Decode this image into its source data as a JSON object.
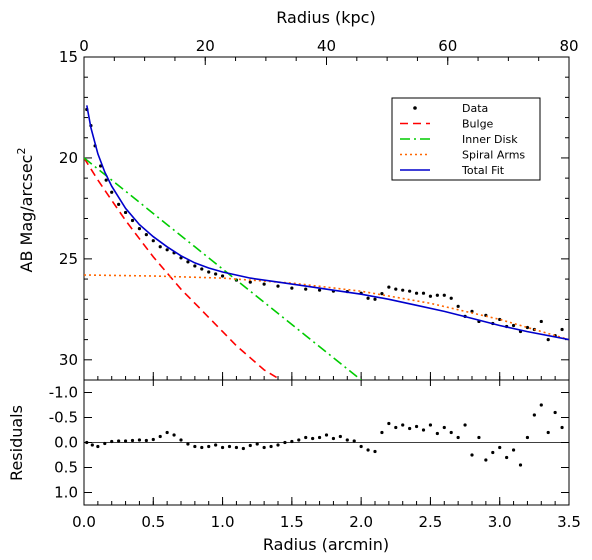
{
  "chart_data": {
    "type": "scatter",
    "top_axis": {
      "label": "Radius (kpc)",
      "ticks": [
        "0",
        "20",
        "40",
        "60",
        "80"
      ],
      "tick_values": [
        0,
        20,
        40,
        60,
        80
      ],
      "range": [
        0,
        80
      ]
    },
    "bottom_axis": {
      "label": "Radius (arcmin)",
      "ticks": [
        "0.0",
        "0.5",
        "1.0",
        "1.5",
        "2.0",
        "2.5",
        "3.0",
        "3.5"
      ],
      "tick_values": [
        0.0,
        0.5,
        1.0,
        1.5,
        2.0,
        2.5,
        3.0,
        3.5
      ],
      "range": [
        0,
        3.5
      ]
    },
    "main_panel": {
      "ylabel_main": "AB Mag/arcsec",
      "ylabel_sup": "2",
      "ylim": [
        15,
        31
      ],
      "y_inverted": true,
      "yticks": [
        "15",
        "20",
        "25",
        "30"
      ],
      "ytick_values": [
        15,
        20,
        25,
        30
      ],
      "legend_position": "top-right",
      "legend": [
        {
          "label": "Data",
          "style": "points",
          "color": "#000000"
        },
        {
          "label": "Bulge",
          "style": "dashed",
          "color": "#ff0000"
        },
        {
          "label": "Inner Disk",
          "style": "dash-dot",
          "color": "#00cc00"
        },
        {
          "label": "Spiral Arms",
          "style": "dotted",
          "color": "#ff6600"
        },
        {
          "label": "Total Fit",
          "style": "solid",
          "color": "#0000cc"
        }
      ],
      "series": [
        {
          "name": "Data",
          "x": [
            0.02,
            0.05,
            0.08,
            0.12,
            0.16,
            0.2,
            0.25,
            0.3,
            0.35,
            0.4,
            0.45,
            0.5,
            0.55,
            0.6,
            0.65,
            0.7,
            0.75,
            0.8,
            0.85,
            0.9,
            0.95,
            1.0,
            1.1,
            1.2,
            1.3,
            1.4,
            1.5,
            1.6,
            1.7,
            1.8,
            1.9,
            2.0,
            2.05,
            2.1,
            2.15,
            2.2,
            2.25,
            2.3,
            2.35,
            2.4,
            2.45,
            2.5,
            2.55,
            2.6,
            2.65,
            2.7,
            2.75,
            2.8,
            2.85,
            2.9,
            2.95,
            3.0,
            3.05,
            3.1,
            3.15,
            3.2,
            3.25,
            3.3,
            3.35,
            3.4,
            3.45
          ],
          "y": [
            17.6,
            18.4,
            19.4,
            20.4,
            21.1,
            21.7,
            22.3,
            22.7,
            23.1,
            23.5,
            23.8,
            24.1,
            24.4,
            24.55,
            24.7,
            24.95,
            25.15,
            25.35,
            25.5,
            25.65,
            25.75,
            25.85,
            26.05,
            26.15,
            26.25,
            26.35,
            26.45,
            26.5,
            26.55,
            26.6,
            26.62,
            26.7,
            26.95,
            27.0,
            26.72,
            26.4,
            26.5,
            26.55,
            26.6,
            26.7,
            26.7,
            26.85,
            26.8,
            26.8,
            26.95,
            27.35,
            27.85,
            27.6,
            28.1,
            27.8,
            28.2,
            28.0,
            28.35,
            28.3,
            28.6,
            28.4,
            28.5,
            28.1,
            29.0,
            28.8,
            28.5
          ]
        },
        {
          "name": "Bulge",
          "x": [
            0.0,
            0.1,
            0.2,
            0.3,
            0.4,
            0.5,
            0.6,
            0.7,
            0.8,
            0.9,
            1.0,
            1.1,
            1.2,
            1.3,
            1.42
          ],
          "y": [
            20.0,
            21.1,
            22.1,
            23.1,
            24.0,
            24.9,
            25.7,
            26.5,
            27.2,
            27.9,
            28.6,
            29.3,
            29.9,
            30.5,
            31.0
          ]
        },
        {
          "name": "Inner Disk",
          "x": [
            0.0,
            0.2,
            0.4,
            0.6,
            0.8,
            1.0,
            1.2,
            1.4,
            1.6,
            1.8,
            2.0
          ],
          "y": [
            20.0,
            21.1,
            22.2,
            23.3,
            24.4,
            25.5,
            26.6,
            27.7,
            28.8,
            29.9,
            31.0
          ]
        },
        {
          "name": "Spiral Arms",
          "x": [
            0.0,
            0.5,
            1.0,
            1.5,
            2.0,
            2.5,
            3.0,
            3.5
          ],
          "y": [
            25.8,
            25.85,
            25.95,
            26.2,
            26.6,
            27.2,
            28.0,
            29.0
          ]
        },
        {
          "name": "Total Fit",
          "x": [
            0.02,
            0.05,
            0.1,
            0.15,
            0.2,
            0.3,
            0.4,
            0.5,
            0.6,
            0.7,
            0.8,
            0.9,
            1.0,
            1.2,
            1.4,
            1.6,
            1.8,
            2.0,
            2.2,
            2.4,
            2.6,
            2.8,
            3.0,
            3.2,
            3.5
          ],
          "y": [
            17.4,
            18.5,
            19.8,
            20.7,
            21.4,
            22.5,
            23.3,
            23.9,
            24.4,
            24.85,
            25.2,
            25.45,
            25.65,
            25.95,
            26.15,
            26.35,
            26.55,
            26.75,
            27.0,
            27.3,
            27.6,
            27.95,
            28.3,
            28.6,
            29.0
          ]
        }
      ]
    },
    "residual_panel": {
      "ylabel": "Residuals",
      "ylim": [
        -1.25,
        1.25
      ],
      "y_inverted": true,
      "yticks": [
        "-1.0",
        "-0.5",
        "0.0",
        "0.5",
        "1.0"
      ],
      "ytick_values": [
        -1.0,
        -0.5,
        0.0,
        0.5,
        1.0
      ],
      "zero_line": 0.0,
      "series": [
        {
          "name": "Residuals",
          "x": [
            0.02,
            0.06,
            0.1,
            0.15,
            0.2,
            0.25,
            0.3,
            0.35,
            0.4,
            0.45,
            0.5,
            0.55,
            0.6,
            0.65,
            0.7,
            0.75,
            0.8,
            0.85,
            0.9,
            0.95,
            1.0,
            1.05,
            1.1,
            1.15,
            1.2,
            1.25,
            1.3,
            1.35,
            1.4,
            1.45,
            1.5,
            1.55,
            1.6,
            1.65,
            1.7,
            1.75,
            1.8,
            1.85,
            1.9,
            1.95,
            2.0,
            2.05,
            2.1,
            2.15,
            2.2,
            2.25,
            2.3,
            2.35,
            2.4,
            2.45,
            2.5,
            2.55,
            2.6,
            2.65,
            2.7,
            2.75,
            2.8,
            2.85,
            2.9,
            2.95,
            3.0,
            3.05,
            3.1,
            3.15,
            3.2,
            3.25,
            3.3,
            3.35,
            3.4,
            3.45
          ],
          "y": [
            0.0,
            0.05,
            0.08,
            0.02,
            -0.02,
            -0.03,
            -0.03,
            -0.04,
            -0.05,
            -0.04,
            -0.06,
            -0.12,
            -0.2,
            -0.15,
            -0.05,
            0.03,
            0.08,
            0.1,
            0.08,
            0.05,
            0.1,
            0.08,
            0.1,
            0.12,
            0.06,
            0.03,
            0.1,
            0.08,
            0.05,
            0.0,
            -0.02,
            -0.05,
            -0.1,
            -0.08,
            -0.1,
            -0.15,
            -0.08,
            -0.12,
            -0.05,
            -0.03,
            0.08,
            0.15,
            0.18,
            -0.2,
            -0.38,
            -0.3,
            -0.35,
            -0.28,
            -0.32,
            -0.25,
            -0.35,
            -0.18,
            -0.3,
            -0.2,
            -0.1,
            -0.35,
            0.25,
            -0.1,
            0.35,
            0.2,
            0.1,
            0.3,
            0.15,
            0.45,
            -0.1,
            -0.55,
            -0.75,
            -0.2,
            -0.6,
            -0.3
          ]
        }
      ]
    }
  }
}
